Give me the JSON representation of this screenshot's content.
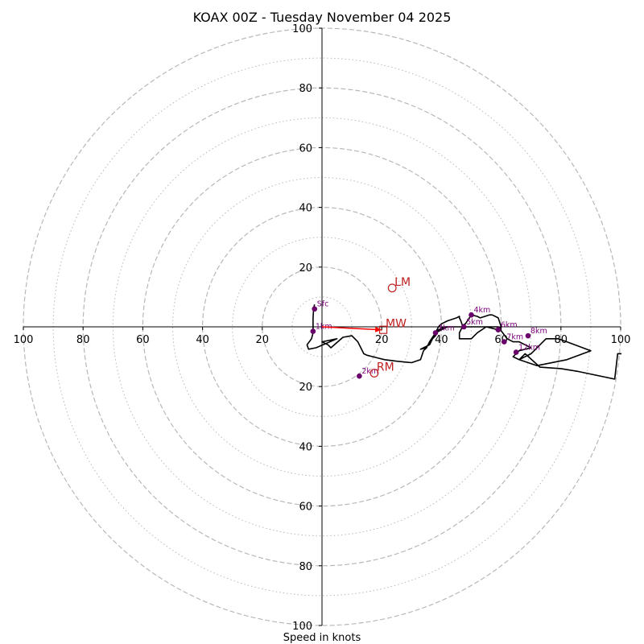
{
  "chart_data": {
    "type": "hodograph",
    "title": "KOAX 00Z - Tuesday November 04 2025",
    "xlabel": "Speed in knots",
    "units": "knots",
    "range": [
      -100,
      100
    ],
    "ring_major": [
      20,
      40,
      60,
      80,
      100
    ],
    "ring_minor": [
      10,
      30,
      50,
      70,
      90
    ],
    "x_tick_labels": [
      "100",
      "80",
      "60",
      "40",
      "20",
      "20",
      "40",
      "60",
      "80",
      "100"
    ],
    "y_tick_labels_top": [
      "100",
      "80",
      "60",
      "40",
      "20"
    ],
    "y_tick_labels_bottom": [
      "20",
      "40",
      "60",
      "80",
      "100"
    ],
    "trace": [
      [
        -2.5,
        7.5
      ],
      [
        -2.8,
        6
      ],
      [
        -3,
        3
      ],
      [
        -3,
        -2
      ],
      [
        -3.5,
        -4
      ],
      [
        -5,
        -6
      ],
      [
        -4.5,
        -7.5
      ],
      [
        -2,
        -7
      ],
      [
        5,
        -4
      ],
      [
        0,
        -5
      ],
      [
        2,
        -6
      ],
      [
        3,
        -7
      ],
      [
        7,
        -3.5
      ],
      [
        10,
        -3
      ],
      [
        12,
        -5
      ],
      [
        13,
        -7
      ],
      [
        13.5,
        -8
      ],
      [
        14,
        -9
      ],
      [
        15,
        -9.5
      ],
      [
        17,
        -10
      ],
      [
        19,
        -10.5
      ],
      [
        21,
        -11
      ],
      [
        25,
        -11.5
      ],
      [
        30,
        -12
      ],
      [
        33,
        -11
      ],
      [
        34,
        -8
      ],
      [
        35,
        -7
      ],
      [
        36,
        -5
      ],
      [
        38,
        -2
      ],
      [
        39,
        0
      ],
      [
        40,
        1
      ],
      [
        42,
        2
      ],
      [
        45,
        3
      ],
      [
        46,
        3.5
      ],
      [
        46,
        3
      ],
      [
        46.5,
        2
      ],
      [
        47,
        0.5
      ],
      [
        48,
        1
      ],
      [
        50,
        4
      ],
      [
        52,
        3.5
      ],
      [
        53,
        3
      ],
      [
        56,
        4
      ],
      [
        57,
        4
      ],
      [
        59,
        3
      ],
      [
        60,
        0
      ],
      [
        59,
        -1
      ],
      [
        55,
        0
      ],
      [
        52,
        -2
      ],
      [
        50,
        -4
      ],
      [
        46,
        -4
      ],
      [
        46,
        -2
      ],
      [
        47,
        0
      ],
      [
        45,
        0
      ],
      [
        41,
        0
      ],
      [
        39,
        -1
      ],
      [
        38,
        -3
      ],
      [
        36,
        -5
      ],
      [
        35,
        -7
      ],
      [
        33,
        -7.5
      ],
      [
        36,
        -6
      ],
      [
        38,
        -2
      ],
      [
        42,
        0
      ],
      [
        44,
        0
      ],
      [
        46,
        0
      ],
      [
        50,
        0
      ],
      [
        55,
        0
      ],
      [
        59,
        0
      ],
      [
        62,
        -4
      ],
      [
        64,
        -5
      ],
      [
        66,
        -5
      ],
      [
        68,
        -6
      ],
      [
        70,
        -7
      ],
      [
        66,
        -8
      ],
      [
        64,
        -10
      ],
      [
        66,
        -11
      ],
      [
        70,
        -9
      ],
      [
        73,
        -6
      ],
      [
        75,
        -4
      ],
      [
        79,
        -4
      ],
      [
        82,
        -5
      ],
      [
        90,
        -8
      ],
      [
        82,
        -11
      ],
      [
        72,
        -13
      ],
      [
        66,
        -11
      ],
      [
        68,
        -9
      ],
      [
        73,
        -13.5
      ],
      [
        80,
        -14
      ],
      [
        86,
        -15
      ],
      [
        98,
        -17.5
      ],
      [
        99,
        -9
      ],
      [
        101,
        -9
      ]
    ],
    "height_markers": [
      {
        "label": "Sfc",
        "u": -2.5,
        "v": 6
      },
      {
        "label": "1km",
        "u": -3,
        "v": -1.5
      },
      {
        "label": "2km",
        "u": 12.5,
        "v": -16.5
      },
      {
        "label": "3km",
        "u": 38,
        "v": -2
      },
      {
        "label": "4km",
        "u": 50,
        "v": 4
      },
      {
        "label": "5km",
        "u": 47.5,
        "v": 0
      },
      {
        "label": "6km",
        "u": 59,
        "v": -1
      },
      {
        "label": "7km",
        "u": 61,
        "v": -5
      },
      {
        "label": "8km",
        "u": 69,
        "v": -3
      },
      {
        "label": "12km",
        "u": 65,
        "v": -8.5
      }
    ],
    "motions": [
      {
        "label": "LM",
        "u": 23.5,
        "v": 13,
        "marker": "circle"
      },
      {
        "label": "RM",
        "u": 17.5,
        "v": -15.5,
        "marker": "circle"
      },
      {
        "label": "MW",
        "u": 20.5,
        "v": -1,
        "marker": "square"
      }
    ],
    "shear_vector": {
      "from": [
        0,
        0
      ],
      "to": [
        20,
        -1
      ]
    },
    "colors": {
      "ring": "#b8b8b8",
      "trace": "#000000",
      "height_marker": "#6a006a",
      "height_label": "#7a007a",
      "motion": "#c02020",
      "shear_vector": "#ff0000"
    }
  }
}
